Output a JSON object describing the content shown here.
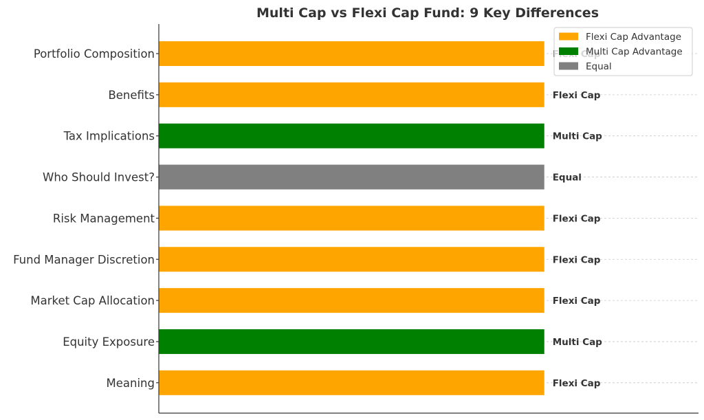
{
  "chart_data": {
    "type": "bar",
    "orientation": "horizontal",
    "title": "Multi Cap vs Flexi Cap Fund: 9 Key Differences",
    "xlabel": "",
    "ylabel": "",
    "xlim": [
      0,
      1.4
    ],
    "grid": true,
    "legend_position": "top-right",
    "categories": [
      "Portfolio Composition",
      "Benefits",
      "Tax Implications",
      "Who Should Invest?",
      "Risk Management",
      "Fund Manager Discretion",
      "Market Cap Allocation",
      "Equity Exposure",
      "Meaning"
    ],
    "values": [
      1,
      1,
      1,
      1,
      1,
      1,
      1,
      1,
      1
    ],
    "winners": [
      "Flexi Cap",
      "Flexi Cap",
      "Multi Cap",
      "Equal",
      "Flexi Cap",
      "Flexi Cap",
      "Flexi Cap",
      "Multi Cap",
      "Flexi Cap"
    ],
    "legend": [
      {
        "label": "Flexi Cap Advantage",
        "color": "#FFA500"
      },
      {
        "label": "Multi Cap Advantage",
        "color": "#008000"
      },
      {
        "label": "Equal",
        "color": "#808080"
      }
    ],
    "colors": {
      "Flexi Cap": "#FFA500",
      "Multi Cap": "#008000",
      "Equal": "#808080"
    }
  }
}
